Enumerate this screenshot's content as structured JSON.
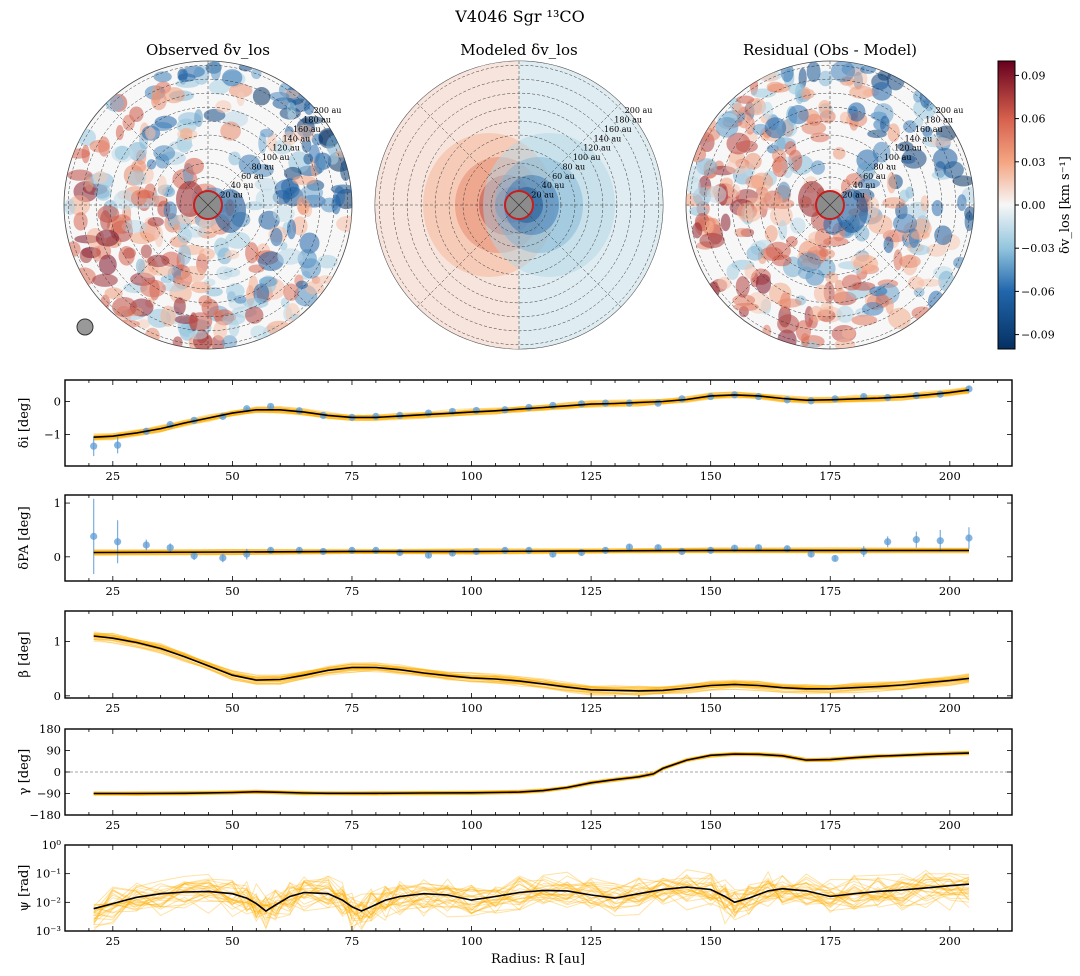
{
  "figure": {
    "title": "V4046 Sgr ¹³CO",
    "xlabel": "Radius: R [au]"
  },
  "disk_maps": {
    "titles": [
      "Observed δv_los",
      "Modeled δv_los",
      "Residual (Obs - Model)"
    ],
    "ring_labels": [
      "20 au",
      "40 au",
      "60 au",
      "80 au",
      "100 au",
      "120 au",
      "140 au",
      "160 au",
      "180 au",
      "200 au"
    ],
    "colorbar_label": "δv_los [km s⁻¹]",
    "colorbar_ticks": [
      "0.09",
      "0.06",
      "0.03",
      "0.00",
      "−0.03",
      "−0.06",
      "−0.09"
    ],
    "colorbar_values": [
      0.09,
      0.06,
      0.03,
      0.0,
      -0.03,
      -0.06,
      -0.09
    ],
    "colorbar_range": [
      -0.1,
      0.1
    ]
  },
  "chart_data": [
    {
      "type": "line",
      "name": "delta_i",
      "ylabel": "δi [deg]",
      "xlim": [
        15,
        213
      ],
      "ylim": [
        -1.95,
        0.65
      ],
      "yticks": [
        0,
        -1
      ],
      "ytick_labels": [
        "0",
        "−1"
      ],
      "xticks": [
        25,
        50,
        75,
        100,
        125,
        150,
        175,
        200
      ],
      "band": 0.08,
      "series": [
        {
          "name": "model",
          "x": [
            21,
            25,
            30,
            35,
            40,
            45,
            50,
            55,
            60,
            65,
            70,
            75,
            80,
            85,
            90,
            95,
            100,
            105,
            110,
            115,
            120,
            125,
            130,
            135,
            140,
            145,
            150,
            155,
            160,
            165,
            170,
            175,
            180,
            185,
            190,
            195,
            200,
            204
          ],
          "y": [
            -1.08,
            -1.05,
            -0.95,
            -0.82,
            -0.65,
            -0.5,
            -0.35,
            -0.25,
            -0.25,
            -0.32,
            -0.42,
            -0.48,
            -0.48,
            -0.44,
            -0.4,
            -0.36,
            -0.32,
            -0.28,
            -0.23,
            -0.18,
            -0.13,
            -0.08,
            -0.06,
            -0.03,
            0.0,
            0.06,
            0.17,
            0.2,
            0.17,
            0.09,
            0.04,
            0.05,
            0.08,
            0.1,
            0.14,
            0.2,
            0.27,
            0.35
          ]
        }
      ],
      "points": {
        "x": [
          21,
          26,
          32,
          37,
          42,
          48,
          53,
          58,
          64,
          69,
          75,
          80,
          85,
          91,
          96,
          101,
          107,
          112,
          117,
          123,
          128,
          133,
          139,
          144,
          150,
          155,
          160,
          166,
          171,
          176,
          182,
          187,
          193,
          198,
          204
        ],
        "y": [
          -1.35,
          -1.32,
          -0.9,
          -0.7,
          -0.57,
          -0.45,
          -0.22,
          -0.15,
          -0.28,
          -0.42,
          -0.48,
          -0.45,
          -0.42,
          -0.35,
          -0.3,
          -0.27,
          -0.25,
          -0.18,
          -0.12,
          -0.07,
          -0.05,
          -0.05,
          -0.05,
          0.08,
          0.15,
          0.2,
          0.15,
          0.05,
          0.02,
          0.08,
          0.15,
          0.12,
          0.18,
          0.22,
          0.38
        ],
        "err": [
          0.3,
          0.25,
          0.05,
          0.05,
          0.05,
          0.05,
          0.05,
          0.05,
          0.05,
          0.05,
          0.05,
          0.05,
          0.05,
          0.05,
          0.05,
          0.05,
          0.05,
          0.05,
          0.05,
          0.05,
          0.05,
          0.05,
          0.05,
          0.05,
          0.05,
          0.05,
          0.05,
          0.05,
          0.05,
          0.05,
          0.05,
          0.05,
          0.05,
          0.05,
          0.1
        ]
      }
    },
    {
      "type": "line",
      "name": "delta_pa",
      "ylabel": "δPA [deg]",
      "xlim": [
        15,
        213
      ],
      "ylim": [
        -0.45,
        1.15
      ],
      "yticks": [
        1,
        0
      ],
      "ytick_labels": [
        "1",
        "0"
      ],
      "xticks": [
        25,
        50,
        75,
        100,
        125,
        150,
        175,
        200
      ],
      "band": 0.04,
      "series": [
        {
          "name": "model",
          "x": [
            21,
            50,
            75,
            100,
            125,
            150,
            175,
            204
          ],
          "y": [
            0.08,
            0.09,
            0.1,
            0.1,
            0.11,
            0.12,
            0.12,
            0.12
          ]
        }
      ],
      "points": {
        "x": [
          21,
          26,
          32,
          37,
          42,
          48,
          53,
          58,
          64,
          69,
          75,
          80,
          85,
          91,
          96,
          101,
          107,
          112,
          117,
          123,
          128,
          133,
          139,
          144,
          150,
          155,
          160,
          166,
          171,
          176,
          182,
          187,
          193,
          198,
          204
        ],
        "y": [
          0.38,
          0.28,
          0.22,
          0.17,
          0.02,
          -0.02,
          0.05,
          0.12,
          0.12,
          0.1,
          0.12,
          0.12,
          0.08,
          0.03,
          0.07,
          0.1,
          0.12,
          0.12,
          0.05,
          0.08,
          0.12,
          0.18,
          0.17,
          0.1,
          0.12,
          0.16,
          0.17,
          0.15,
          0.05,
          -0.03,
          0.1,
          0.28,
          0.32,
          0.3,
          0.35
        ],
        "err": [
          0.7,
          0.4,
          0.1,
          0.08,
          0.08,
          0.08,
          0.1,
          0.05,
          0.05,
          0.05,
          0.05,
          0.05,
          0.05,
          0.05,
          0.05,
          0.05,
          0.05,
          0.05,
          0.05,
          0.05,
          0.05,
          0.05,
          0.05,
          0.05,
          0.05,
          0.05,
          0.05,
          0.05,
          0.05,
          0.05,
          0.1,
          0.1,
          0.15,
          0.2,
          0.2
        ]
      }
    },
    {
      "type": "line",
      "name": "beta",
      "ylabel": "β [deg]",
      "xlim": [
        15,
        213
      ],
      "ylim": [
        -0.04,
        1.56
      ],
      "yticks": [
        1,
        0
      ],
      "ytick_labels": [
        "1",
        "0"
      ],
      "xticks": [
        25,
        50,
        75,
        100,
        125,
        150,
        175,
        200
      ],
      "band": 0.07,
      "series": [
        {
          "name": "model",
          "x": [
            21,
            25,
            30,
            35,
            40,
            45,
            50,
            55,
            60,
            65,
            70,
            75,
            80,
            85,
            90,
            95,
            100,
            105,
            110,
            115,
            120,
            125,
            130,
            135,
            140,
            145,
            150,
            155,
            160,
            165,
            170,
            175,
            180,
            185,
            190,
            195,
            200,
            204
          ],
          "y": [
            1.1,
            1.06,
            0.98,
            0.87,
            0.72,
            0.55,
            0.38,
            0.29,
            0.3,
            0.38,
            0.47,
            0.52,
            0.52,
            0.48,
            0.42,
            0.37,
            0.33,
            0.31,
            0.27,
            0.22,
            0.16,
            0.11,
            0.1,
            0.09,
            0.1,
            0.14,
            0.19,
            0.21,
            0.19,
            0.15,
            0.13,
            0.13,
            0.15,
            0.17,
            0.2,
            0.24,
            0.28,
            0.32
          ]
        }
      ]
    },
    {
      "type": "line",
      "name": "gamma",
      "ylabel": "γ [deg]",
      "xlim": [
        15,
        213
      ],
      "ylim": [
        -180,
        180
      ],
      "yticks": [
        180,
        90,
        0,
        -90,
        -180
      ],
      "ytick_labels": [
        "180",
        "90",
        "0",
        "−90",
        "−180"
      ],
      "xticks": [
        25,
        50,
        75,
        100,
        125,
        150,
        175,
        200
      ],
      "band": 6,
      "reference_line": 0,
      "series": [
        {
          "name": "model",
          "x": [
            21,
            30,
            40,
            50,
            55,
            60,
            65,
            70,
            75,
            80,
            90,
            100,
            110,
            115,
            120,
            125,
            130,
            135,
            138,
            140,
            145,
            150,
            155,
            160,
            165,
            170,
            175,
            180,
            185,
            190,
            195,
            200,
            204
          ],
          "y": [
            -90,
            -90,
            -89,
            -86,
            -83,
            -85,
            -88,
            -89,
            -89,
            -89,
            -88,
            -87,
            -84,
            -78,
            -65,
            -45,
            -32,
            -20,
            -8,
            15,
            50,
            70,
            75,
            74,
            68,
            50,
            52,
            60,
            66,
            70,
            74,
            77,
            79
          ]
        }
      ]
    },
    {
      "type": "line",
      "name": "psi",
      "ylabel": "ψ [rad]",
      "yscale": "log",
      "xlim": [
        15,
        213
      ],
      "ylim": [
        0.001,
        1
      ],
      "yticks": [
        1,
        0.1,
        0.01,
        0.001
      ],
      "ytick_labels": [
        "10⁰",
        "10⁻¹",
        "10⁻²",
        "10⁻³"
      ],
      "xticks": [
        25,
        50,
        75,
        100,
        125,
        150,
        175,
        200
      ],
      "xtick_labels": [
        "25",
        "50",
        "75",
        "100",
        "125",
        "150",
        "175",
        "200"
      ],
      "band": 0.35,
      "series": [
        {
          "name": "model",
          "x": [
            21,
            25,
            30,
            35,
            40,
            45,
            50,
            53,
            55,
            57,
            59,
            62,
            65,
            70,
            73,
            75,
            77,
            79,
            82,
            85,
            90,
            95,
            100,
            105,
            110,
            115,
            120,
            125,
            130,
            135,
            140,
            145,
            150,
            153,
            155,
            158,
            162,
            165,
            170,
            175,
            180,
            185,
            190,
            195,
            200,
            204
          ],
          "y": [
            0.006,
            0.009,
            0.015,
            0.02,
            0.023,
            0.024,
            0.02,
            0.014,
            0.009,
            0.005,
            0.008,
            0.016,
            0.022,
            0.02,
            0.012,
            0.007,
            0.005,
            0.007,
            0.012,
            0.016,
            0.02,
            0.018,
            0.012,
            0.016,
            0.022,
            0.026,
            0.025,
            0.018,
            0.014,
            0.02,
            0.028,
            0.034,
            0.028,
            0.016,
            0.01,
            0.014,
            0.025,
            0.03,
            0.025,
            0.016,
            0.02,
            0.024,
            0.027,
            0.032,
            0.038,
            0.043
          ]
        }
      ]
    }
  ]
}
